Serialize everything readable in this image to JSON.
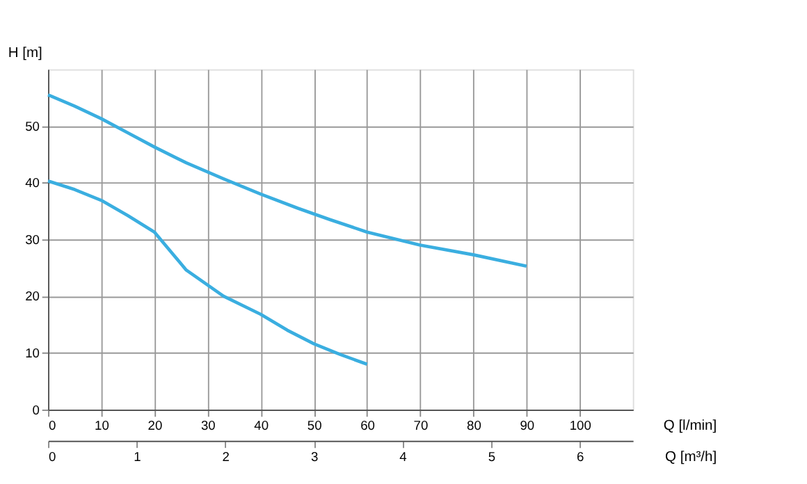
{
  "chart_data": {
    "type": "line",
    "xlabel": "Q [l/min]",
    "ylabel": "H [m]",
    "x2label": "Q [m³/h]",
    "series": [
      {
        "color": "#3aaee0",
        "x": [
          0,
          5,
          10,
          15,
          20,
          26,
          33,
          40,
          47,
          53,
          60,
          70,
          80,
          90
        ],
        "values": [
          55.5,
          53.5,
          51.3,
          48.8,
          46.3,
          43.5,
          40.7,
          38,
          35.5,
          33.5,
          31.3,
          29,
          27.3,
          25.3
        ]
      },
      {
        "color": "#3aaee0",
        "x": [
          0,
          5,
          10,
          15,
          20,
          26,
          33,
          40,
          45,
          50,
          55,
          60
        ],
        "values": [
          40.3,
          38.8,
          36.9,
          34.2,
          31.3,
          24.6,
          20,
          16.8,
          14,
          11.6,
          9.7,
          8
        ]
      }
    ],
    "xlim": [
      0,
      110
    ],
    "xticks": [
      0,
      10,
      20,
      30,
      40,
      50,
      60,
      70,
      80,
      90,
      100
    ],
    "ylim": [
      0,
      60
    ],
    "yticks": [
      0,
      10,
      20,
      30,
      40,
      50
    ],
    "x2lim": [
      0,
      6.6
    ],
    "x2ticks": [
      0,
      1,
      2,
      3,
      4,
      5,
      6
    ],
    "grid": true,
    "marker": "none",
    "line_style": "solid"
  }
}
